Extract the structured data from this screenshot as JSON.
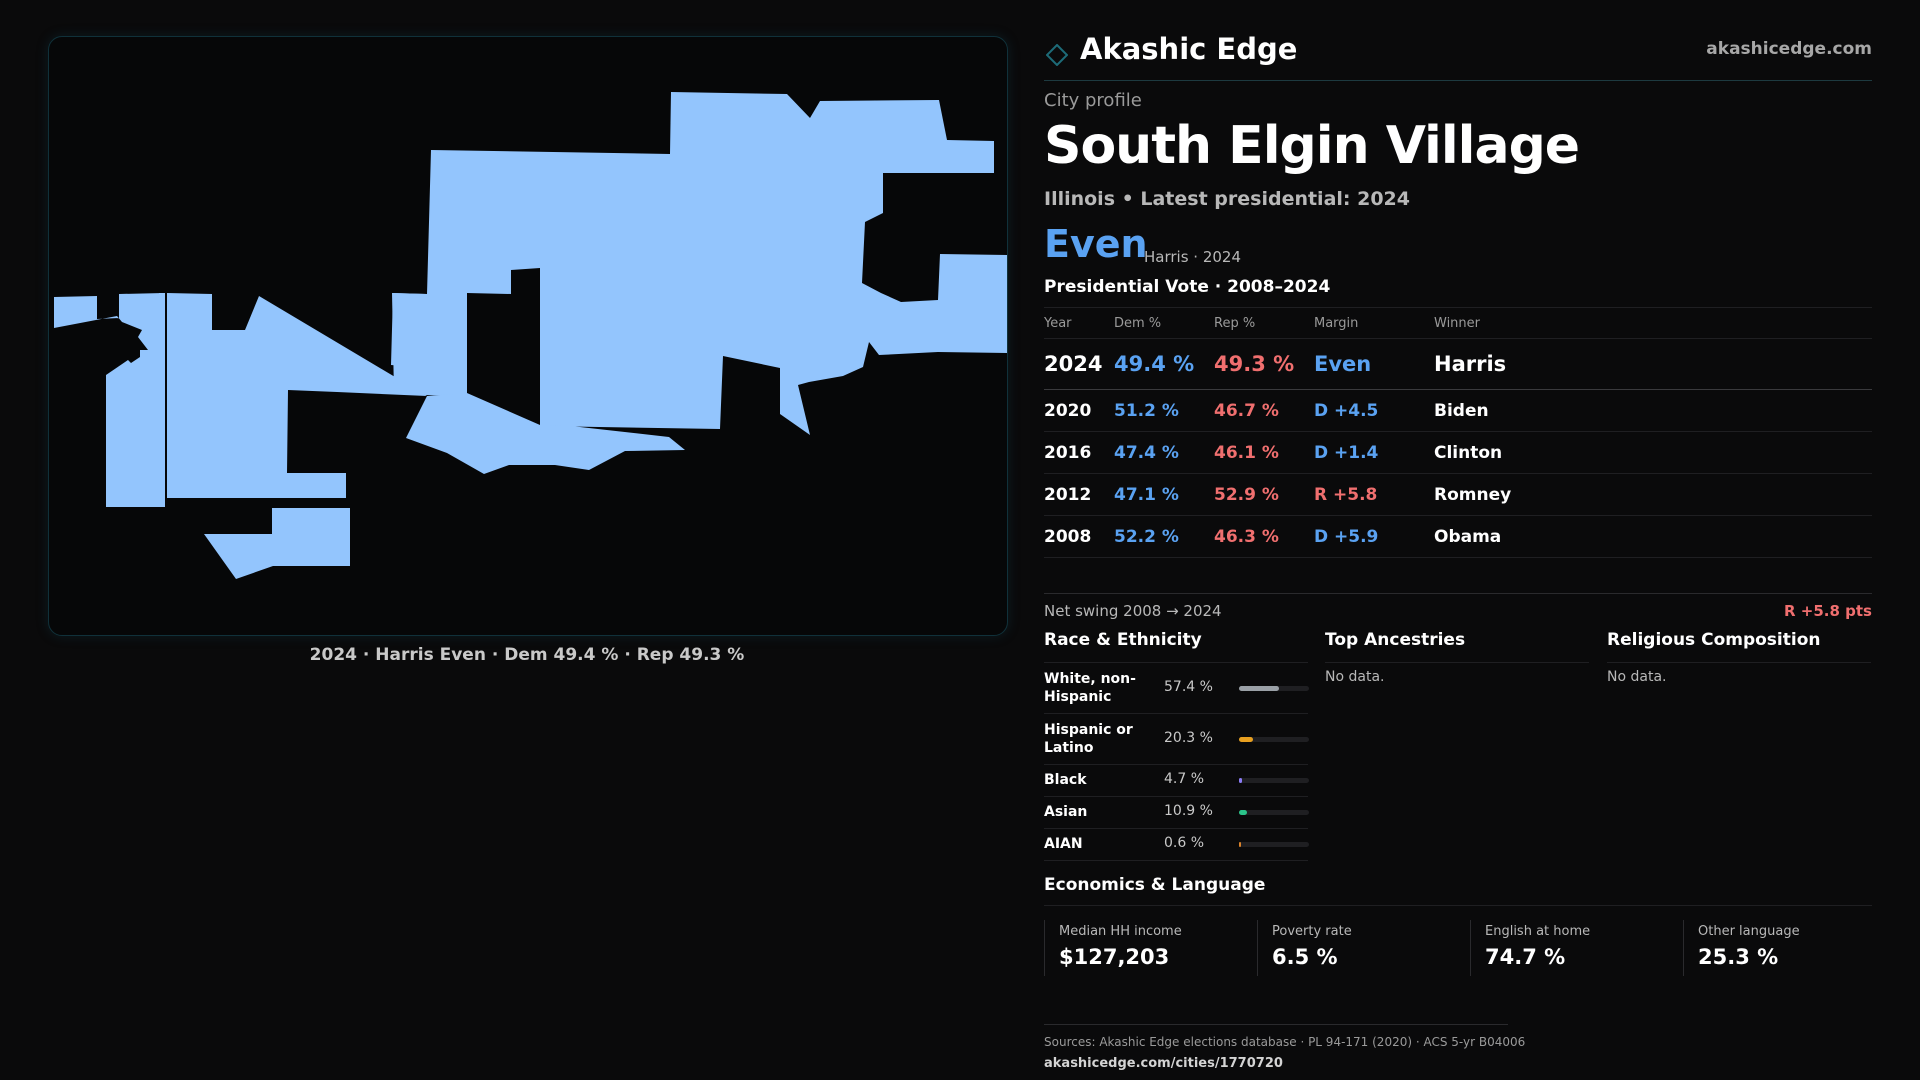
{
  "brand": {
    "name": "Akashic Edge",
    "url": "akashicedge.com"
  },
  "profile": {
    "kicker": "City profile",
    "city": "South Elgin Village",
    "subline": "Illinois • Latest presidential: 2024",
    "headline_margin": "Even",
    "headline_sub": "Harris · 2024"
  },
  "map": {
    "caption": "2024 · Harris Even · Dem 49.4 % · Rep 49.3 %",
    "fill_color": "#93c5fd"
  },
  "presidential": {
    "title": "Presidential Vote · 2008–2024",
    "headers": [
      "Year",
      "Dem %",
      "Rep %",
      "Margin",
      "Winner"
    ],
    "rows": [
      {
        "year": "2024",
        "dem": "49.4 %",
        "rep": "49.3 %",
        "margin": "Even",
        "margin_party": "even",
        "winner": "Harris"
      },
      {
        "year": "2020",
        "dem": "51.2 %",
        "rep": "46.7 %",
        "margin": "D +4.5",
        "margin_party": "d",
        "winner": "Biden"
      },
      {
        "year": "2016",
        "dem": "47.4 %",
        "rep": "46.1 %",
        "margin": "D +1.4",
        "margin_party": "d",
        "winner": "Clinton"
      },
      {
        "year": "2012",
        "dem": "47.1 %",
        "rep": "52.9 %",
        "margin": "R +5.8",
        "margin_party": "r",
        "winner": "Romney"
      },
      {
        "year": "2008",
        "dem": "52.2 %",
        "rep": "46.3 %",
        "margin": "D +5.9",
        "margin_party": "d",
        "winner": "Obama"
      }
    ],
    "swing_label": "Net swing 2008 → 2024",
    "swing_value": "R +5.8 pts"
  },
  "race": {
    "title": "Race & Ethnicity",
    "rows": [
      {
        "label": "White, non-Hispanic",
        "pct": "57.4 %",
        "share": 0.574,
        "color": "#9aa0a6",
        "tall": true
      },
      {
        "label": "Hispanic or Latino",
        "pct": "20.3 %",
        "share": 0.203,
        "color": "#e8a020",
        "tall": true
      },
      {
        "label": "Black",
        "pct": "4.7 %",
        "share": 0.047,
        "color": "#8b7cf6",
        "tall": false
      },
      {
        "label": "Asian",
        "pct": "10.9 %",
        "share": 0.109,
        "color": "#2bc48a",
        "tall": false
      },
      {
        "label": "AIAN",
        "pct": "0.6 %",
        "share": 0.006,
        "color": "#d9822b",
        "tall": false
      }
    ]
  },
  "ancestries": {
    "title": "Top Ancestries",
    "empty": "No data."
  },
  "religion": {
    "title": "Religious Composition",
    "empty": "No data."
  },
  "economics": {
    "title": "Economics & Language",
    "cells": [
      {
        "label": "Median HH income",
        "value": "$127,203"
      },
      {
        "label": "Poverty rate",
        "value": "6.5 %"
      },
      {
        "label": "English at home",
        "value": "74.7 %"
      },
      {
        "label": "Other language",
        "value": "25.3 %"
      }
    ]
  },
  "footer": {
    "sources": "Sources: Akashic Edge elections database · PL 94-171 (2020) · ACS 5-yr B04006",
    "permalink": "akashicedge.com/cities/1770720"
  },
  "colors": {
    "dem": "#5aa2f2",
    "rep": "#f06f6f",
    "accent": "#1d5a66"
  }
}
